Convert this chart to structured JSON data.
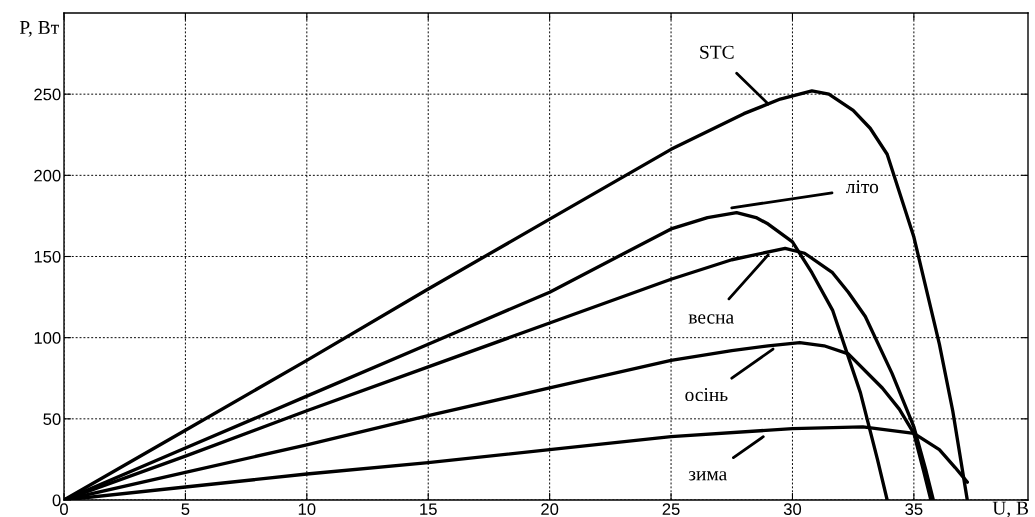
{
  "chart_data": {
    "type": "line",
    "xlabel": "U, B",
    "ylabel": "P, Вт",
    "series": [
      {
        "color": "#000000",
        "x": [
          0,
          5,
          10,
          15,
          20,
          25,
          28,
          29.5,
          30.8,
          31.5,
          32.5,
          33.2,
          33.9,
          35,
          36.05,
          36.6,
          37.2
        ],
        "values": [
          0,
          43,
          86,
          130,
          173,
          216,
          238,
          247,
          252,
          250,
          240,
          229,
          213,
          162,
          96,
          55,
          0
        ]
      },
      {
        "color": "#000000",
        "x": [
          0,
          5,
          10,
          15,
          20,
          25,
          26.5,
          27.7,
          28.5,
          29,
          30,
          30.8,
          31.65,
          32.8,
          33.5,
          33.9
        ],
        "values": [
          0,
          32,
          64,
          96,
          128,
          167,
          174,
          177,
          174,
          170,
          159,
          140,
          117,
          66,
          25,
          0
        ]
      },
      {
        "color": "#000000",
        "x": [
          0,
          5,
          10,
          15,
          20,
          25,
          27.5,
          29.7,
          30.5,
          31.65,
          32.3,
          33,
          34.1,
          35,
          35.5,
          35.8
        ],
        "values": [
          0,
          27,
          55,
          82,
          109,
          136,
          148,
          155,
          152,
          140,
          128,
          113,
          78,
          45,
          18,
          0
        ]
      },
      {
        "color": "#000000",
        "x": [
          0,
          5,
          10,
          15,
          20,
          25,
          27.5,
          29,
          30.3,
          31.3,
          32.3,
          33.7,
          34.4,
          35,
          35.4,
          35.7
        ],
        "values": [
          0,
          17,
          34,
          52,
          69,
          86,
          92,
          95,
          97,
          95,
          90,
          69,
          56,
          41,
          18,
          0
        ]
      },
      {
        "color": "#000000",
        "x": [
          0,
          5,
          10,
          15,
          20,
          25,
          30,
          32.9,
          35,
          36.05,
          36.7,
          37.2
        ],
        "values": [
          0,
          8,
          16,
          23,
          31,
          39,
          44,
          45,
          41,
          31,
          20,
          11
        ]
      }
    ],
    "annotations": [
      {
        "text": "STC",
        "x": 29,
        "y": 244
      },
      {
        "text": "літо",
        "x": 27.5,
        "y": 180
      },
      {
        "text": "весна",
        "x": 29.0,
        "y": 151
      },
      {
        "text": "осінь",
        "x": 29.2,
        "y": 93
      },
      {
        "text": "зима",
        "x": 28.8,
        "y": 39
      }
    ],
    "xlim": [
      0,
      39.7
    ],
    "ylim": [
      0,
      300
    ],
    "xticks": [
      0,
      5,
      10,
      15,
      20,
      25,
      30,
      35
    ],
    "yticks": [
      0,
      50,
      100,
      150,
      200,
      250
    ],
    "grid": true,
    "line_style": "solid",
    "marker": "none"
  }
}
